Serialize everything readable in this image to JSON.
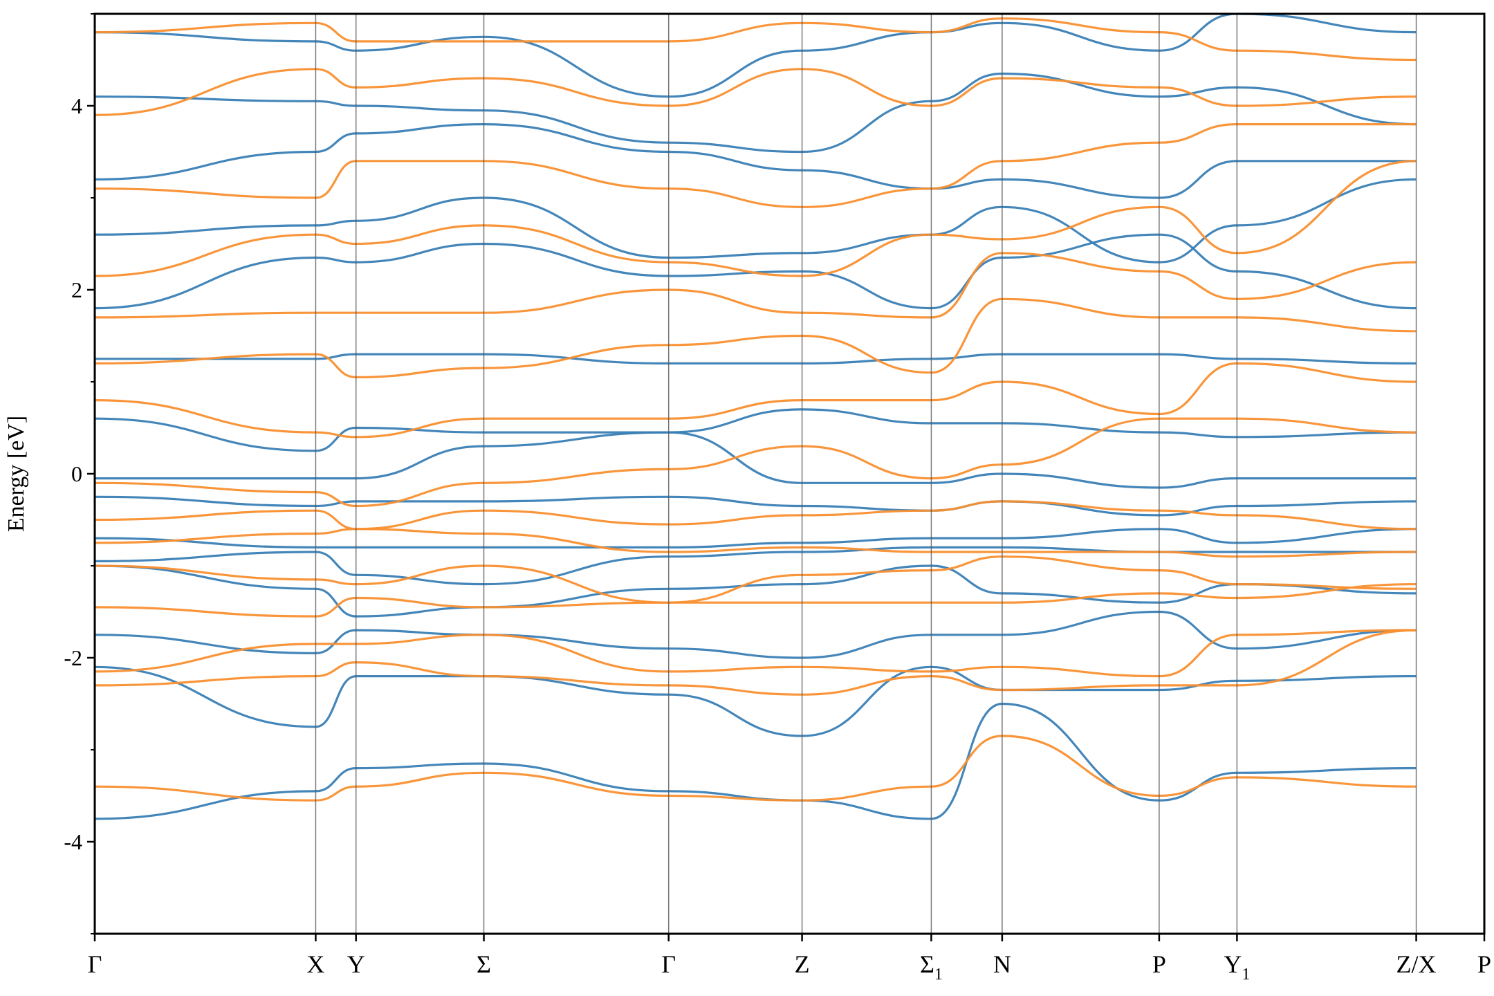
{
  "chart_data": {
    "type": "line",
    "title": "",
    "xlabel": "",
    "ylabel": "Energy [eV]",
    "ylim": [
      -5,
      5
    ],
    "y_ticks": [
      {
        "value": -4,
        "label": "-4"
      },
      {
        "value": -2,
        "label": "-2"
      },
      {
        "value": 0,
        "label": "0"
      },
      {
        "value": 2,
        "label": "2"
      },
      {
        "value": 4,
        "label": "4"
      }
    ],
    "y_minor_ticks": [
      -5,
      -3,
      -1,
      1,
      3,
      5
    ],
    "xlim": [
      0,
      10.0
    ],
    "high_symmetry_points": [
      {
        "x": 0.0,
        "label": "Γ",
        "sub": ""
      },
      {
        "x": 1.59,
        "label": "X",
        "sub": ""
      },
      {
        "x": 1.88,
        "label": "Y",
        "sub": ""
      },
      {
        "x": 2.8,
        "label": "Σ",
        "sub": ""
      },
      {
        "x": 4.13,
        "label": "Γ",
        "sub": ""
      },
      {
        "x": 5.09,
        "label": "Z",
        "sub": ""
      },
      {
        "x": 6.02,
        "label": "Σ",
        "sub": "1"
      },
      {
        "x": 6.53,
        "label": "N",
        "sub": ""
      },
      {
        "x": 7.66,
        "label": "P",
        "sub": ""
      },
      {
        "x": 8.22,
        "label": "Y",
        "sub": "1"
      },
      {
        "x": 9.51,
        "label": "Z/X",
        "sub": ""
      },
      {
        "x": 10.0,
        "label": "P",
        "sub": ""
      }
    ],
    "grid": false,
    "legend": "none",
    "series": [
      {
        "color": "#3a7fb5",
        "bands": [
          [
            -3.75,
            -3.45,
            -3.2,
            -3.15,
            -3.45,
            -3.55,
            -3.75,
            -2.5,
            -3.55,
            -3.25,
            -3.2,
            -3.1,
            -2.4,
            -3.2
          ],
          [
            -2.1,
            -2.75,
            -2.2,
            -2.2,
            -2.4,
            -2.85,
            -2.1,
            -2.35,
            -2.35,
            -2.25,
            -2.2,
            -2.2,
            -2.2,
            -2.2
          ],
          [
            -1.75,
            -1.95,
            -1.7,
            -1.75,
            -1.9,
            -2.0,
            -1.75,
            -1.75,
            -1.5,
            -1.9,
            -1.7,
            -1.85,
            -1.5,
            -1.75
          ],
          [
            -1.0,
            -1.25,
            -1.55,
            -1.45,
            -1.25,
            -1.2,
            -1.0,
            -1.3,
            -1.4,
            -1.2,
            -1.3,
            -1.2,
            -1.2,
            -1.25
          ],
          [
            -0.95,
            -0.85,
            -1.1,
            -1.2,
            -0.9,
            -0.85,
            -0.8,
            -0.8,
            -0.85,
            -0.85,
            -0.85,
            -0.85,
            -0.85,
            -0.85
          ],
          [
            -0.7,
            -0.8,
            -0.8,
            -0.8,
            -0.8,
            -0.75,
            -0.7,
            -0.7,
            -0.6,
            -0.75,
            -0.6,
            -0.55,
            -0.65,
            -0.65
          ],
          [
            -0.25,
            -0.35,
            -0.3,
            -0.3,
            -0.25,
            -0.35,
            -0.4,
            -0.3,
            -0.45,
            -0.35,
            -0.3,
            -0.3,
            -0.3,
            -0.3
          ],
          [
            -0.05,
            -0.05,
            -0.05,
            0.3,
            0.45,
            -0.1,
            -0.1,
            0.0,
            -0.15,
            -0.05,
            -0.05,
            0.0,
            -0.05,
            -0.1
          ],
          [
            0.6,
            0.25,
            0.5,
            0.45,
            0.45,
            0.7,
            0.55,
            0.55,
            0.45,
            0.4,
            0.45,
            0.5,
            0.5,
            0.5
          ],
          [
            1.25,
            1.25,
            1.3,
            1.3,
            1.2,
            1.2,
            1.25,
            1.3,
            1.3,
            1.25,
            1.2,
            1.3,
            1.25,
            1.25
          ],
          [
            1.8,
            2.35,
            2.3,
            2.5,
            2.15,
            2.2,
            1.8,
            2.35,
            2.6,
            2.2,
            1.8,
            2.6,
            2.35,
            1.8
          ],
          [
            2.6,
            2.7,
            2.75,
            3.0,
            2.35,
            2.4,
            2.6,
            2.9,
            2.3,
            2.7,
            3.2,
            2.8,
            2.1,
            2.1
          ],
          [
            3.2,
            3.5,
            3.7,
            3.8,
            3.5,
            3.3,
            3.1,
            3.2,
            3.0,
            3.4,
            3.4,
            3.3,
            3.1,
            3.6
          ],
          [
            4.1,
            4.05,
            4.0,
            3.95,
            3.6,
            3.5,
            4.05,
            4.35,
            4.1,
            4.2,
            3.8,
            3.9,
            4.1,
            3.7
          ],
          [
            4.8,
            4.7,
            4.6,
            4.75,
            4.1,
            4.6,
            4.8,
            4.9,
            4.6,
            5.0,
            4.8,
            4.9,
            4.8,
            4.75
          ]
        ]
      },
      {
        "color": "#f98f2f",
        "bands": [
          [
            -3.4,
            -3.55,
            -3.4,
            -3.25,
            -3.5,
            -3.55,
            -3.4,
            -2.85,
            -3.5,
            -3.3,
            -3.4,
            -3.25,
            -2.85,
            -3.4
          ],
          [
            -2.3,
            -2.2,
            -2.05,
            -2.2,
            -2.3,
            -2.4,
            -2.2,
            -2.35,
            -2.3,
            -2.3,
            -1.7,
            -2.2,
            -2.3,
            -1.7
          ],
          [
            -2.15,
            -1.85,
            -1.85,
            -1.75,
            -2.15,
            -2.1,
            -2.15,
            -2.1,
            -2.2,
            -1.75,
            -1.7,
            -1.9,
            -2.15,
            -1.7
          ],
          [
            -1.45,
            -1.55,
            -1.35,
            -1.45,
            -1.4,
            -1.4,
            -1.4,
            -1.4,
            -1.3,
            -1.35,
            -1.2,
            -1.25,
            -1.25,
            -1.25
          ],
          [
            -1.0,
            -1.15,
            -1.2,
            -1.0,
            -1.4,
            -1.1,
            -1.05,
            -0.9,
            -1.05,
            -1.2,
            -1.25,
            -1.2,
            -1.2,
            -1.2
          ],
          [
            -0.75,
            -0.65,
            -0.6,
            -0.65,
            -0.85,
            -0.8,
            -0.85,
            -0.85,
            -0.85,
            -0.9,
            -0.85,
            -0.85,
            -0.8,
            -0.8
          ],
          [
            -0.5,
            -0.4,
            -0.6,
            -0.4,
            -0.55,
            -0.45,
            -0.4,
            -0.3,
            -0.4,
            -0.45,
            -0.6,
            -0.45,
            -0.6,
            -0.6
          ],
          [
            -0.1,
            -0.2,
            -0.35,
            -0.1,
            0.05,
            0.3,
            -0.05,
            0.1,
            0.6,
            0.6,
            0.45,
            0.3,
            0.4,
            0.45
          ],
          [
            0.8,
            0.45,
            0.4,
            0.6,
            0.6,
            0.8,
            0.8,
            1.0,
            0.65,
            1.2,
            1.0,
            1.0,
            1.0,
            1.0
          ],
          [
            1.2,
            1.3,
            1.05,
            1.15,
            1.4,
            1.5,
            1.1,
            1.9,
            1.7,
            1.7,
            1.55,
            1.7,
            1.75,
            1.75
          ],
          [
            1.7,
            1.75,
            1.75,
            1.75,
            2.0,
            1.75,
            1.7,
            2.4,
            2.2,
            1.9,
            2.3,
            2.4,
            1.95,
            1.55
          ],
          [
            2.15,
            2.6,
            2.5,
            2.7,
            2.3,
            2.15,
            2.6,
            2.55,
            2.9,
            2.4,
            3.4,
            2.8,
            2.4,
            3.35
          ],
          [
            3.1,
            3.0,
            3.4,
            3.4,
            3.1,
            2.9,
            3.1,
            3.4,
            3.6,
            3.8,
            3.8,
            3.9,
            3.4,
            3.35
          ],
          [
            3.9,
            4.4,
            4.2,
            4.3,
            4.0,
            4.4,
            4.0,
            4.3,
            4.2,
            4.0,
            4.1,
            4.0,
            4.1,
            4.1
          ],
          [
            4.8,
            4.9,
            4.7,
            4.7,
            4.7,
            4.9,
            4.8,
            4.95,
            4.8,
            4.6,
            4.5,
            4.6,
            4.7,
            4.5
          ]
        ]
      }
    ]
  }
}
